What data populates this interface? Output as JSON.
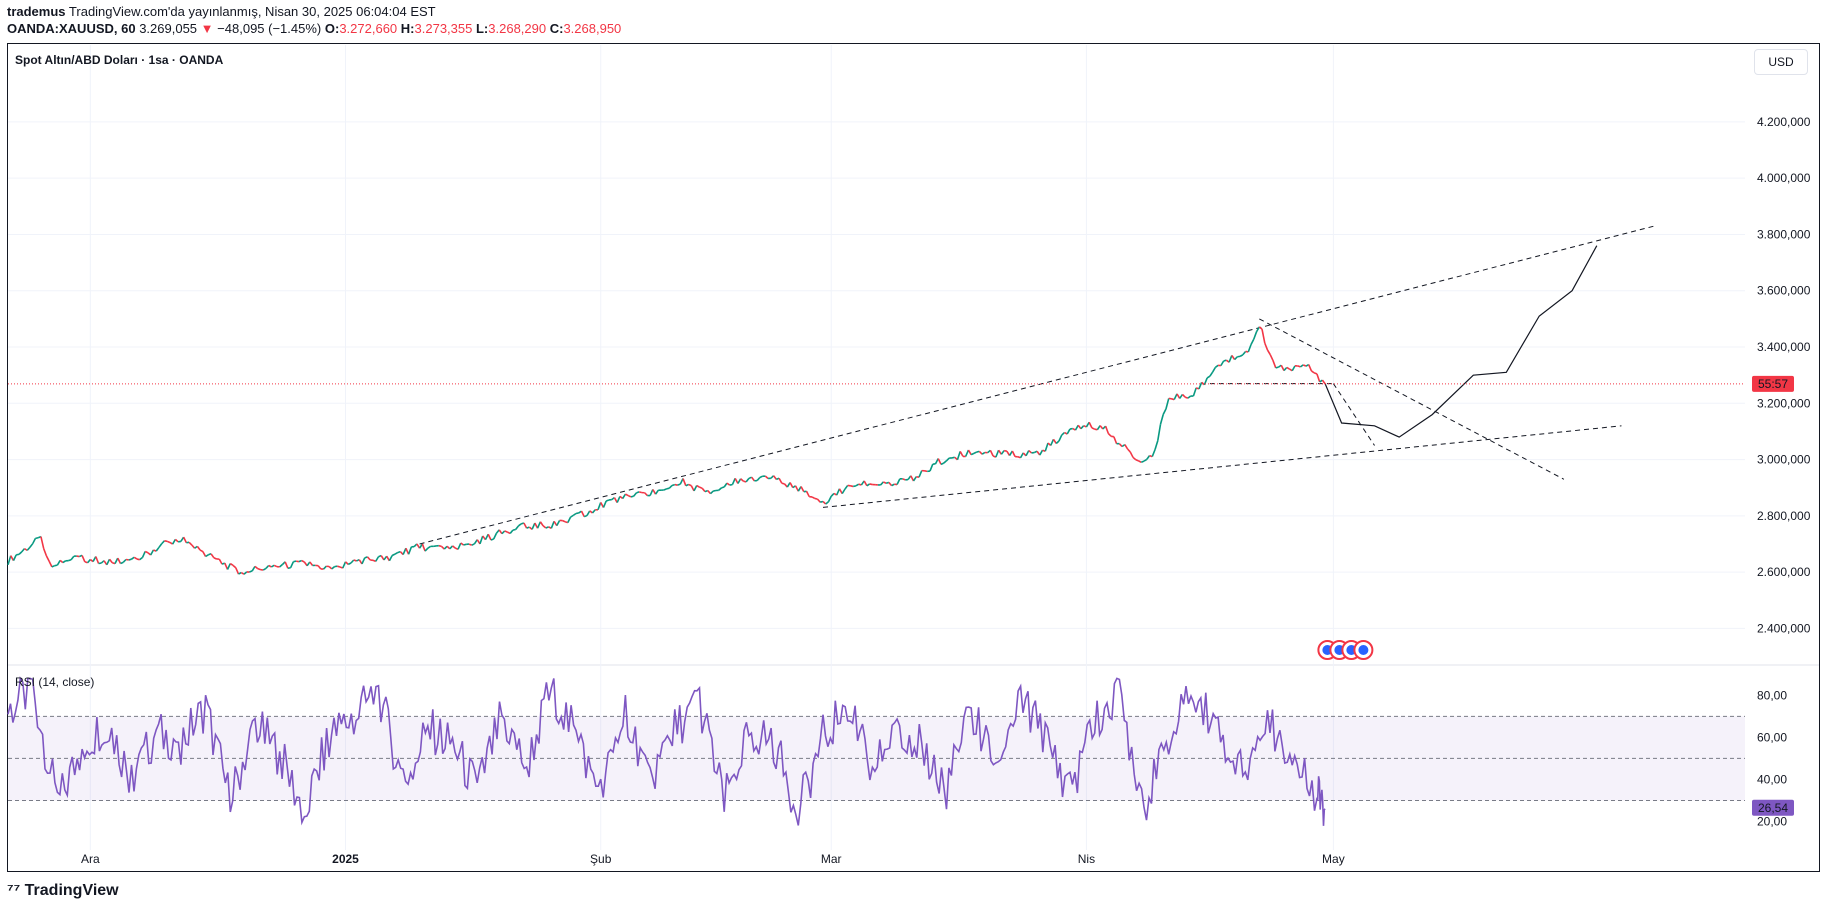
{
  "header": {
    "author": "trademus",
    "published": "TradingView.com'da yayınlanmış, Nisan 30, 2025 06:04:04 EST",
    "symbol": "OANDA:XAUUSD, 60",
    "last": "3.269,055",
    "arrow": "▼",
    "change": "−48,095 (−1.45%)",
    "o_label": "O:",
    "o_value": "3.272,660",
    "h_label": "H:",
    "h_value": "3.273,355",
    "l_label": "L:",
    "l_value": "3.268,290",
    "c_label": "C:",
    "c_value": "3.268,950"
  },
  "chart_data": [
    {
      "type": "line",
      "title": "Spot Altın/ABD Doları · 1sa · OANDA",
      "currency": "USD",
      "y_ticks": [
        2400,
        2600,
        2800,
        3000,
        3200,
        3400,
        3600,
        3800,
        4000,
        4200
      ],
      "y_tick_labels": [
        "2.400,000",
        "2.600,000",
        "2.800,000",
        "3.000,000",
        "3.200,000",
        "3.400,000",
        "3.600,000",
        "3.800,000",
        "4.000,000",
        "4.200,000"
      ],
      "ylim": [
        2270,
        4420
      ],
      "x_ticks": [
        {
          "label": "Ara",
          "date": "2024-12-01"
        },
        {
          "label": "2025",
          "date": "2025-01-01"
        },
        {
          "label": "Şub",
          "date": "2025-02-01"
        },
        {
          "label": "Mar",
          "date": "2025-03-01"
        },
        {
          "label": "Nis",
          "date": "2025-04-01"
        },
        {
          "label": "May",
          "date": "2025-05-01"
        }
      ],
      "xlim": [
        "2024-11-21",
        "2025-06-20"
      ],
      "price_series": {
        "dates": [
          "2024-11-21",
          "2024-11-25",
          "2024-11-26",
          "2024-11-29",
          "2024-12-03",
          "2024-12-06",
          "2024-12-10",
          "2024-12-12",
          "2024-12-16",
          "2024-12-19",
          "2024-12-23",
          "2024-12-27",
          "2024-12-31",
          "2025-01-02",
          "2025-01-06",
          "2025-01-10",
          "2025-01-14",
          "2025-01-17",
          "2025-01-22",
          "2025-01-27",
          "2025-01-30",
          "2025-02-03",
          "2025-02-07",
          "2025-02-11",
          "2025-02-14",
          "2025-02-18",
          "2025-02-21",
          "2025-02-25",
          "2025-02-28",
          "2025-03-04",
          "2025-03-07",
          "2025-03-11",
          "2025-03-14",
          "2025-03-18",
          "2025-03-21",
          "2025-03-26",
          "2025-03-31",
          "2025-04-03",
          "2025-04-07",
          "2025-04-09",
          "2025-04-11",
          "2025-04-14",
          "2025-04-17",
          "2025-04-21",
          "2025-04-22",
          "2025-04-24",
          "2025-04-28",
          "2025-04-30"
        ],
        "close": [
          2640,
          2720,
          2630,
          2650,
          2640,
          2635,
          2700,
          2720,
          2650,
          2600,
          2620,
          2630,
          2610,
          2640,
          2650,
          2690,
          2680,
          2710,
          2760,
          2770,
          2810,
          2860,
          2880,
          2920,
          2880,
          2930,
          2940,
          2900,
          2850,
          2920,
          2910,
          2930,
          2990,
          3030,
          3020,
          3020,
          3120,
          3120,
          3000,
          3010,
          3220,
          3230,
          3330,
          3400,
          3480,
          3320,
          3330,
          3269
        ]
      },
      "projection": {
        "dates": [
          "2025-04-30",
          "2025-05-02",
          "2025-05-06",
          "2025-05-09",
          "2025-05-13",
          "2025-05-18",
          "2025-05-22",
          "2025-05-26",
          "2025-05-30",
          "2025-06-02"
        ],
        "values": [
          3269,
          3130,
          3120,
          3080,
          3160,
          3300,
          3310,
          3510,
          3600,
          3760
        ]
      },
      "trendlines": [
        {
          "from": [
            "2025-01-10",
            2700
          ],
          "to": [
            "2025-06-09",
            3830
          ]
        },
        {
          "from": [
            "2025-02-28",
            2830
          ],
          "to": [
            "2025-06-05",
            3120
          ]
        },
        {
          "from": [
            "2025-04-22",
            3500
          ],
          "to": [
            "2025-05-29",
            2930
          ]
        },
        {
          "from": [
            "2025-04-16",
            3270
          ],
          "to": [
            "2025-05-01",
            3270
          ]
        },
        {
          "from": [
            "2025-05-01",
            3270
          ],
          "to": [
            "2025-05-06",
            3050
          ]
        }
      ],
      "current_price": 3269,
      "countdown": "55:57"
    },
    {
      "type": "line",
      "title": "RSI (14, close)",
      "y_ticks": [
        20,
        40,
        60,
        80
      ],
      "y_tick_labels": [
        "20,00",
        "40,00",
        "60,00",
        "80,00"
      ],
      "ylim": [
        16,
        92
      ],
      "band": [
        30,
        70
      ],
      "midline": 50,
      "current": "26,54",
      "dates": [
        "2024-11-21",
        "2024-11-24",
        "2024-11-27",
        "2024-11-30",
        "2024-12-03",
        "2024-12-06",
        "2024-12-09",
        "2024-12-12",
        "2024-12-15",
        "2024-12-18",
        "2024-12-21",
        "2024-12-24",
        "2024-12-27",
        "2024-12-30",
        "2025-01-02",
        "2025-01-05",
        "2025-01-08",
        "2025-01-11",
        "2025-01-14",
        "2025-01-17",
        "2025-01-20",
        "2025-01-23",
        "2025-01-26",
        "2025-01-29",
        "2025-02-01",
        "2025-02-04",
        "2025-02-07",
        "2025-02-10",
        "2025-02-13",
        "2025-02-16",
        "2025-02-19",
        "2025-02-22",
        "2025-02-25",
        "2025-02-28",
        "2025-03-03",
        "2025-03-06",
        "2025-03-09",
        "2025-03-12",
        "2025-03-15",
        "2025-03-18",
        "2025-03-21",
        "2025-03-24",
        "2025-03-27",
        "2025-03-30",
        "2025-04-02",
        "2025-04-05",
        "2025-04-08",
        "2025-04-11",
        "2025-04-14",
        "2025-04-17",
        "2025-04-20",
        "2025-04-23",
        "2025-04-26",
        "2025-04-29",
        "2025-04-30"
      ],
      "values": [
        72,
        84,
        28,
        55,
        68,
        40,
        62,
        58,
        74,
        30,
        66,
        52,
        24,
        60,
        70,
        82,
        38,
        64,
        57,
        35,
        70,
        46,
        84,
        60,
        32,
        73,
        40,
        64,
        77,
        29,
        63,
        58,
        24,
        60,
        76,
        42,
        68,
        55,
        36,
        72,
        47,
        78,
        60,
        34,
        67,
        80,
        28,
        56,
        85,
        62,
        42,
        68,
        50,
        32,
        26
      ]
    }
  ],
  "watermark": "TradingView"
}
